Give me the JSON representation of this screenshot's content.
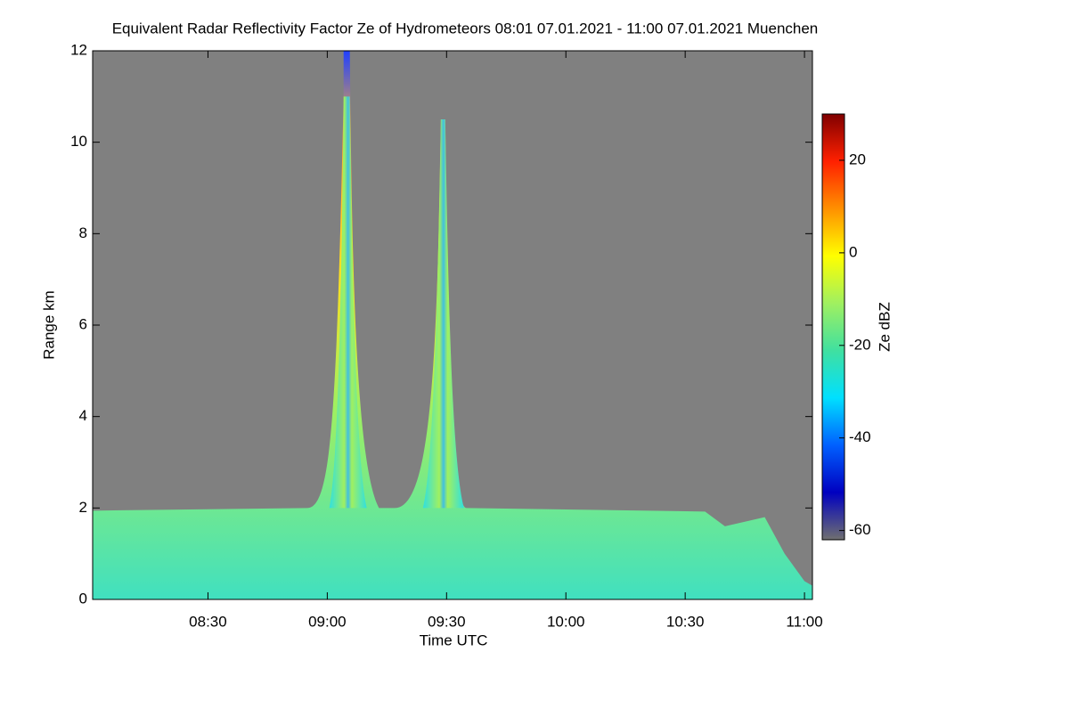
{
  "chart_data": {
    "type": "heatmap",
    "title": "Equivalent Radar Reflectivity Factor Ze of Hydrometeors   08:01 07.01.2021 - 11:00 07.01.2021 Muenchen",
    "x_label": "Time UTC",
    "y_label": "Range km",
    "colorbar_label": "Ze dBZ",
    "xlim": [
      481,
      662
    ],
    "xticks": [
      {
        "value": 510,
        "label": "08:30"
      },
      {
        "value": 540,
        "label": "09:00"
      },
      {
        "value": 570,
        "label": "09:30"
      },
      {
        "value": 600,
        "label": "10:00"
      },
      {
        "value": 630,
        "label": "10:30"
      },
      {
        "value": 660,
        "label": "11:00"
      }
    ],
    "ylim": [
      0,
      12
    ],
    "yticks": [
      0,
      2,
      4,
      6,
      8,
      10,
      12
    ],
    "zlim": [
      -62,
      30
    ],
    "zticks": [
      -60,
      -40,
      -20,
      0,
      20
    ],
    "colormap": [
      "#707070",
      "#0000c0",
      "#0060ff",
      "#00e0ff",
      "#40e0a0",
      "#a0f060",
      "#ffff00",
      "#ff9000",
      "#ff2000",
      "#800000"
    ],
    "background_color": "#808080"
  }
}
